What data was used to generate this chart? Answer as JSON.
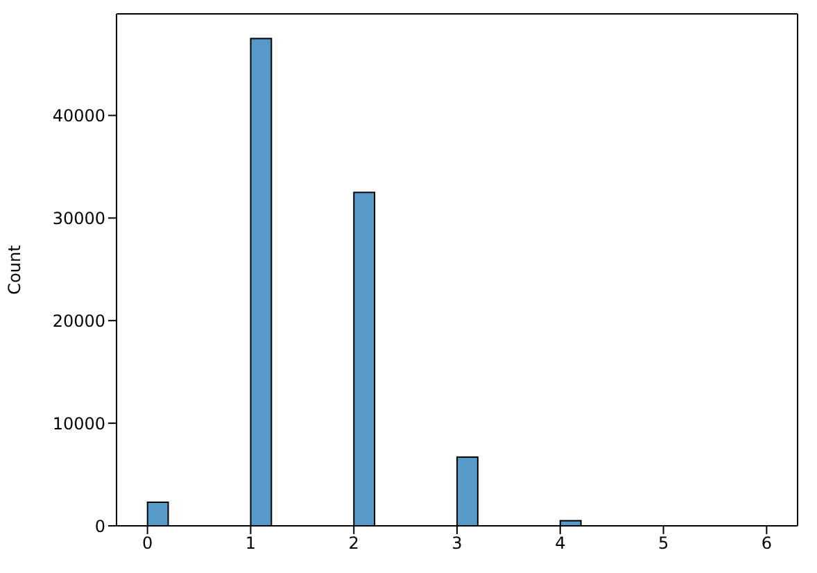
{
  "chart_data": {
    "type": "histogram",
    "ylabel": "Count",
    "bins": [
      0,
      0.2,
      0.4,
      0.6,
      0.8,
      1,
      1.2,
      1.4,
      1.6,
      1.8,
      2,
      2.2,
      2.4,
      2.6,
      2.8,
      3,
      3.2,
      3.4,
      3.6,
      3.8,
      4,
      4.2,
      4.4,
      4.6,
      4.8,
      5,
      5.2,
      5.4,
      5.6,
      5.8,
      6
    ],
    "values": [
      2300,
      0,
      0,
      0,
      0,
      47500,
      0,
      0,
      0,
      0,
      32500,
      0,
      0,
      0,
      0,
      6700,
      0,
      0,
      0,
      0,
      500,
      0,
      0,
      0,
      0,
      0,
      0,
      0,
      0,
      0
    ],
    "color": "#5799c7",
    "xlim": [
      -0.3,
      6.3
    ],
    "xticks": [
      0,
      1,
      2,
      3,
      4,
      5,
      6
    ],
    "ylim": [
      0,
      49900
    ],
    "yticks": [
      0,
      10000,
      20000,
      30000,
      40000
    ],
    "grid": false
  }
}
